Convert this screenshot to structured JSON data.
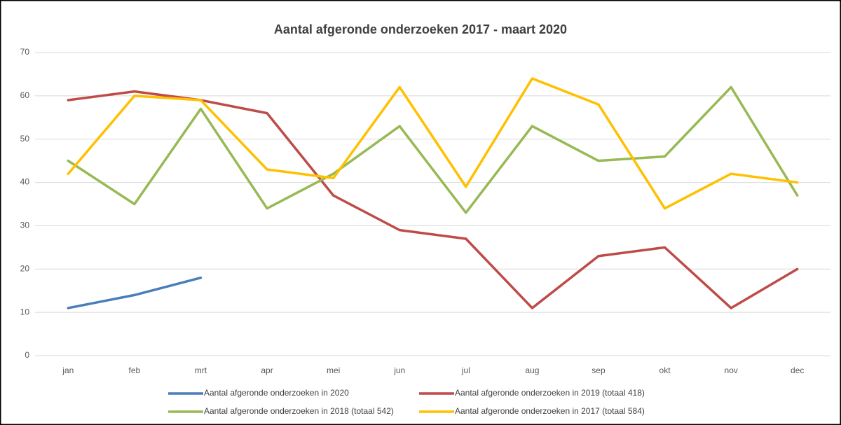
{
  "chart_data": {
    "type": "line",
    "title": "Aantal afgeronde onderzoeken 2017 - maart 2020",
    "categories": [
      "jan",
      "feb",
      "mrt",
      "apr",
      "mei",
      "jun",
      "jul",
      "aug",
      "sep",
      "okt",
      "nov",
      "dec"
    ],
    "series": [
      {
        "name": "Aantal afgeronde onderzoeken in 2020",
        "color": "#4a7ebb",
        "values": [
          11,
          14,
          18,
          null,
          null,
          null,
          null,
          null,
          null,
          null,
          null,
          null
        ]
      },
      {
        "name": "Aantal afgeronde onderzoeken in 2019 (totaal 418)",
        "color": "#be4b48",
        "values": [
          59,
          61,
          59,
          56,
          37,
          29,
          27,
          11,
          23,
          25,
          11,
          20
        ]
      },
      {
        "name": "Aantal afgeronde onderzoeken in 2018 (totaal 542)",
        "color": "#98b954",
        "values": [
          45,
          35,
          57,
          34,
          42,
          53,
          33,
          53,
          45,
          46,
          62,
          37
        ]
      },
      {
        "name": "Aantal afgeronde onderzoeken in 2017 (totaal 584)",
        "color": "#ffc000",
        "values": [
          42,
          60,
          59,
          43,
          41,
          62,
          39,
          64,
          58,
          34,
          42,
          40
        ]
      }
    ],
    "ylim": [
      0,
      70
    ],
    "yticks": [
      0,
      10,
      20,
      30,
      40,
      50,
      60,
      70
    ],
    "grid": true,
    "legend": "bottom"
  }
}
